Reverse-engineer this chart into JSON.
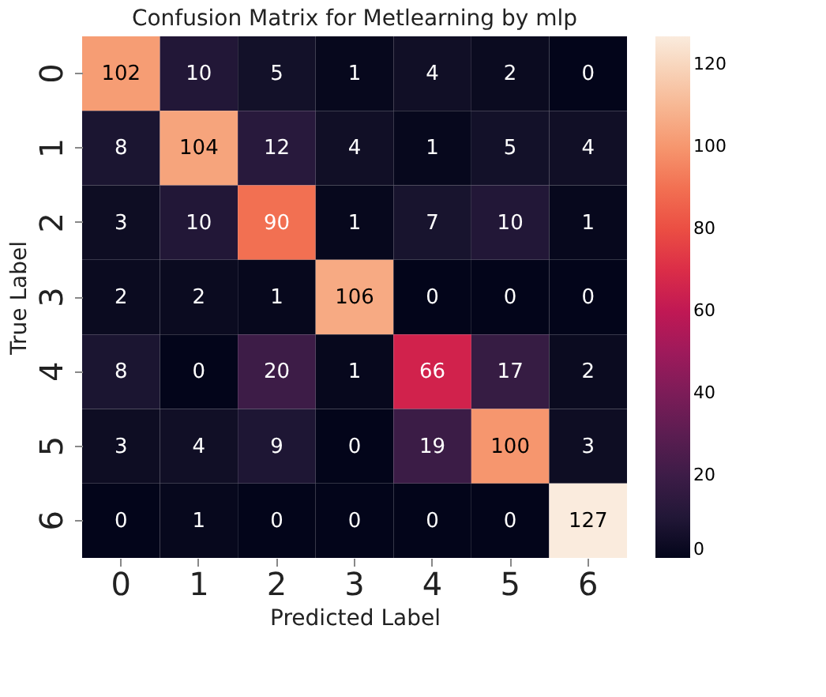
{
  "chart_data": {
    "type": "heatmap",
    "title": "Confusion Matrix for Metlearning by mlp",
    "xlabel": "Predicted Label",
    "ylabel": "True Label",
    "categories": [
      "0",
      "1",
      "2",
      "3",
      "4",
      "5",
      "6"
    ],
    "y_categories": [
      "0",
      "1",
      "2",
      "3",
      "4",
      "5",
      "6"
    ],
    "cells": [
      [
        102,
        10,
        5,
        1,
        4,
        2,
        0
      ],
      [
        8,
        104,
        12,
        4,
        1,
        5,
        4
      ],
      [
        3,
        10,
        90,
        1,
        7,
        10,
        1
      ],
      [
        2,
        2,
        1,
        106,
        0,
        0,
        0
      ],
      [
        8,
        0,
        20,
        1,
        66,
        17,
        2
      ],
      [
        3,
        4,
        9,
        0,
        19,
        100,
        3
      ],
      [
        0,
        1,
        0,
        0,
        0,
        0,
        127
      ]
    ],
    "data_labels": true,
    "clim": [
      0,
      127
    ],
    "cticks": [
      0,
      20,
      40,
      60,
      80,
      100,
      120
    ]
  }
}
